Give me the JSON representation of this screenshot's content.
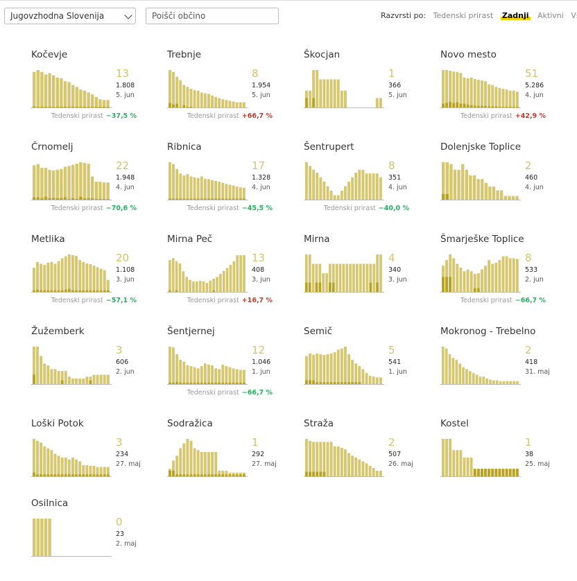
{
  "region_select": {
    "value": "Jugovzhodna Slovenija"
  },
  "search": {
    "placeholder": "Poišči občino"
  },
  "sort": {
    "label": "Razvrsti po:",
    "options": [
      "Tedenski prirast",
      "Zadnji",
      "Aktivni",
      "Vsi"
    ],
    "active": "Zadnji"
  },
  "growth_label": "Tedenski prirast",
  "colors": {
    "bar": "#d6c66e",
    "bar_dark": "#b8a21f",
    "accent": "#f1d100",
    "positive": "#c0392b",
    "negative": "#27ae60"
  },
  "chart_data": [
    {
      "type": "bar",
      "title": "Kočevje",
      "latest": "13",
      "cumulative": "1.808",
      "date": "5. jun",
      "growth": "−37,5 %",
      "growth_sign": "neg",
      "values": [
        95,
        100,
        95,
        88,
        92,
        86,
        80,
        78,
        70,
        68,
        60,
        55,
        48,
        45,
        40,
        35,
        28,
        22,
        20,
        20
      ],
      "highlight": [
        3,
        2,
        2,
        2,
        2,
        2,
        2,
        2,
        2,
        2,
        2,
        2,
        2,
        2,
        2,
        2,
        2,
        2,
        2,
        2
      ]
    },
    {
      "type": "bar",
      "title": "Trebnje",
      "latest": "8",
      "cumulative": "1.954",
      "date": "5. jun",
      "growth": "+66,7 %",
      "growth_sign": "pos",
      "values": [
        100,
        95,
        82,
        72,
        60,
        55,
        50,
        46,
        45,
        40,
        38,
        36,
        32,
        28,
        25,
        22,
        20,
        18,
        16,
        14,
        14,
        14
      ],
      "highlight": [
        12,
        8,
        10,
        0,
        6,
        2,
        2,
        0,
        0,
        0,
        0,
        0,
        0,
        0,
        0,
        0,
        0,
        0,
        0,
        0,
        0,
        0
      ]
    },
    {
      "type": "bar",
      "title": "Škocjan",
      "latest": "1",
      "cumulative": "366",
      "date": "5. jun",
      "growth": "",
      "growth_sign": "",
      "values": [
        45,
        45,
        100,
        100,
        75,
        75,
        75,
        75,
        75,
        75,
        45,
        45,
        0,
        0,
        0,
        0,
        0,
        0,
        0,
        0,
        25,
        25
      ],
      "highlight": [
        25,
        0,
        25,
        0,
        0,
        0,
        0,
        0,
        0,
        0,
        0,
        0,
        0,
        0,
        0,
        0,
        0,
        0,
        0,
        0,
        0,
        0
      ]
    },
    {
      "type": "bar",
      "title": "Novo mesto",
      "latest": "51",
      "cumulative": "5.286",
      "date": "4. jun",
      "growth": "+42,9 %",
      "growth_sign": "pos",
      "values": [
        100,
        100,
        98,
        96,
        95,
        92,
        80,
        78,
        80,
        76,
        74,
        72,
        70,
        62,
        60,
        55,
        52,
        50,
        48,
        45,
        45,
        42
      ],
      "highlight": [
        10,
        12,
        15,
        12,
        14,
        10,
        10,
        8,
        6,
        5,
        4,
        4,
        4,
        3,
        3,
        3,
        2,
        2,
        2,
        2,
        2,
        2
      ]
    },
    {
      "type": "bar",
      "title": "Črnomelj",
      "latest": "22",
      "cumulative": "1.948",
      "date": "4. jun",
      "growth": "−70,6 %",
      "growth_sign": "neg",
      "values": [
        92,
        95,
        85,
        85,
        80,
        78,
        80,
        82,
        88,
        90,
        93,
        96,
        100,
        98,
        96,
        62,
        48,
        48,
        46,
        46
      ],
      "highlight": [
        6,
        6,
        4,
        8,
        4,
        5,
        4,
        4,
        6,
        2,
        4,
        2,
        8,
        4,
        4,
        4,
        2,
        2,
        2,
        2
      ]
    },
    {
      "type": "bar",
      "title": "Ribnica",
      "latest": "17",
      "cumulative": "1.328",
      "date": "4. jun",
      "growth": "−45,5 %",
      "growth_sign": "neg",
      "values": [
        100,
        95,
        82,
        70,
        65,
        68,
        62,
        60,
        58,
        62,
        56,
        55,
        52,
        50,
        48,
        45,
        42,
        40,
        38,
        35,
        33,
        32
      ],
      "highlight": [
        3,
        3,
        3,
        3,
        3,
        3,
        3,
        3,
        3,
        3,
        3,
        3,
        3,
        3,
        3,
        3,
        3,
        3,
        3,
        3,
        3,
        3
      ]
    },
    {
      "type": "bar",
      "title": "Šentrupert",
      "latest": "8",
      "cumulative": "351",
      "date": "4. jun",
      "growth": "−40,0 %",
      "growth_sign": "neg",
      "values": [
        100,
        90,
        80,
        72,
        60,
        48,
        36,
        24,
        12,
        12,
        24,
        36,
        48,
        60,
        72,
        80,
        80,
        70,
        70,
        70,
        70,
        60
      ],
      "highlight": [
        0,
        0,
        0,
        0,
        0,
        0,
        0,
        0,
        0,
        0,
        0,
        0,
        0,
        0,
        0,
        0,
        0,
        0,
        0,
        0,
        0,
        0
      ]
    },
    {
      "type": "bar",
      "title": "Dolenjske Toplice",
      "latest": "2",
      "cumulative": "460",
      "date": "4. jun",
      "growth": "",
      "growth_sign": "",
      "values": [
        100,
        100,
        95,
        80,
        80,
        95,
        80,
        65,
        65,
        55,
        55,
        45,
        35,
        35,
        25,
        25,
        10,
        10,
        10,
        10
      ],
      "highlight": [
        15,
        15,
        0,
        0,
        0,
        0,
        0,
        0,
        0,
        0,
        0,
        0,
        0,
        0,
        0,
        0,
        0,
        0,
        0,
        0
      ]
    },
    {
      "type": "bar",
      "title": "Metlika",
      "latest": "20",
      "cumulative": "1.108",
      "date": "3. jun",
      "growth": "−57,1 %",
      "growth_sign": "neg",
      "values": [
        65,
        80,
        75,
        72,
        78,
        80,
        75,
        82,
        90,
        95,
        100,
        98,
        96,
        85,
        80,
        76,
        74,
        70,
        66,
        62,
        58,
        32
      ],
      "highlight": [
        4,
        6,
        4,
        4,
        4,
        4,
        4,
        4,
        4,
        6,
        8,
        4,
        4,
        4,
        4,
        4,
        4,
        4,
        4,
        4,
        4,
        4
      ]
    },
    {
      "type": "bar",
      "title": "Mirna Peč",
      "latest": "13",
      "cumulative": "408",
      "date": "3. jun",
      "growth": "+16,7 %",
      "growth_sign": "pos",
      "values": [
        85,
        90,
        82,
        76,
        55,
        40,
        32,
        28,
        28,
        30,
        28,
        24,
        30,
        35,
        40,
        48,
        56,
        64,
        72,
        82,
        98,
        98,
        98
      ],
      "highlight": [
        4,
        0,
        4,
        0,
        0,
        0,
        0,
        0,
        0,
        0,
        0,
        0,
        0,
        4,
        0,
        0,
        0,
        0,
        0,
        0,
        0,
        0,
        0
      ]
    },
    {
      "type": "bar",
      "title": "Mirna",
      "latest": "4",
      "cumulative": "340",
      "date": "3. jun",
      "growth": "",
      "growth_sign": "",
      "values": [
        100,
        100,
        75,
        75,
        75,
        50,
        50,
        75,
        75,
        75,
        75,
        75,
        75,
        75,
        75,
        75,
        75,
        75,
        75,
        75,
        75,
        100,
        100
      ],
      "highlight": [
        25,
        25,
        0,
        25,
        25,
        0,
        0,
        25,
        25,
        0,
        0,
        0,
        0,
        0,
        0,
        0,
        0,
        0,
        0,
        25,
        0,
        25,
        0
      ]
    },
    {
      "type": "bar",
      "title": "Šmarješke Toplice",
      "latest": "8",
      "cumulative": "533",
      "date": "2. jun",
      "growth": "−66,7 %",
      "growth_sign": "neg",
      "values": [
        70,
        85,
        100,
        90,
        75,
        65,
        55,
        60,
        55,
        48,
        50,
        60,
        70,
        85,
        75,
        78,
        85,
        95,
        95,
        90,
        90,
        88
      ],
      "highlight": [
        40,
        40,
        40,
        0,
        0,
        0,
        0,
        0,
        0,
        10,
        10,
        0,
        0,
        0,
        0,
        0,
        0,
        0,
        0,
        0,
        0,
        0
      ]
    },
    {
      "type": "bar",
      "title": "Žužemberk",
      "latest": "3",
      "cumulative": "606",
      "date": "2. jun",
      "growth": "",
      "growth_sign": "",
      "values": [
        100,
        100,
        75,
        55,
        50,
        40,
        40,
        35,
        35,
        35,
        20,
        15,
        15,
        15,
        15,
        20,
        20,
        25,
        25,
        25,
        25,
        25
      ],
      "highlight": [
        25,
        0,
        0,
        0,
        0,
        0,
        0,
        0,
        10,
        0,
        0,
        0,
        0,
        0,
        0,
        0,
        10,
        0,
        0,
        0,
        0,
        0
      ]
    },
    {
      "type": "bar",
      "title": "Šentjernej",
      "latest": "12",
      "cumulative": "1.046",
      "date": "1. jun",
      "growth": "−66,7 %",
      "growth_sign": "neg",
      "values": [
        100,
        98,
        80,
        65,
        60,
        50,
        48,
        45,
        42,
        48,
        55,
        52,
        50,
        42,
        40,
        52,
        48,
        45,
        42,
        40,
        38,
        38
      ],
      "highlight": [
        4,
        4,
        6,
        4,
        4,
        4,
        4,
        4,
        4,
        4,
        4,
        4,
        4,
        4,
        4,
        4,
        4,
        4,
        4,
        4,
        4,
        4
      ]
    },
    {
      "type": "bar",
      "title": "Semič",
      "latest": "5",
      "cumulative": "541",
      "date": "1. jun",
      "growth": "",
      "growth_sign": "",
      "values": [
        75,
        82,
        78,
        82,
        80,
        78,
        80,
        82,
        85,
        92,
        95,
        100,
        80,
        65,
        55,
        48,
        40,
        30,
        22,
        20,
        18,
        18
      ],
      "highlight": [
        10,
        10,
        10,
        5,
        5,
        5,
        5,
        5,
        5,
        5,
        5,
        5,
        5,
        5,
        5,
        5,
        0,
        0,
        0,
        0,
        0,
        0
      ]
    },
    {
      "type": "bar",
      "title": "Mokronog - Trebelno",
      "latest": "2",
      "cumulative": "418",
      "date": "31. maj",
      "growth": "",
      "growth_sign": "",
      "values": [
        100,
        95,
        80,
        70,
        65,
        55,
        45,
        40,
        35,
        30,
        25,
        20,
        20,
        15,
        12,
        10,
        10,
        8,
        8,
        8,
        8,
        8,
        8
      ],
      "highlight": [
        0,
        0,
        0,
        0,
        0,
        0,
        0,
        0,
        0,
        0,
        0,
        0,
        0,
        0,
        0,
        0,
        0,
        0,
        0,
        0,
        0,
        0,
        0
      ]
    },
    {
      "type": "bar",
      "title": "Loški Potok",
      "latest": "3",
      "cumulative": "234",
      "date": "27. maj",
      "growth": "",
      "growth_sign": "",
      "values": [
        100,
        95,
        90,
        80,
        75,
        70,
        60,
        55,
        50,
        50,
        45,
        50,
        45,
        40,
        30,
        30,
        28,
        28,
        25,
        25,
        25,
        25
      ],
      "highlight": [
        10,
        5,
        5,
        5,
        5,
        5,
        5,
        5,
        5,
        5,
        5,
        5,
        5,
        5,
        5,
        5,
        5,
        5,
        5,
        5,
        5,
        5
      ]
    },
    {
      "type": "bar",
      "title": "Sodražica",
      "latest": "1",
      "cumulative": "292",
      "date": "27. maj",
      "growth": "",
      "growth_sign": "",
      "values": [
        20,
        42,
        55,
        75,
        88,
        100,
        95,
        75,
        70,
        65,
        65,
        65,
        65,
        65,
        15,
        15,
        15,
        10,
        10,
        10,
        10,
        10
      ],
      "highlight": [
        15,
        15,
        5,
        5,
        5,
        5,
        5,
        5,
        5,
        5,
        5,
        5,
        5,
        5,
        5,
        5,
        5,
        5,
        5,
        5,
        5,
        5
      ]
    },
    {
      "type": "bar",
      "title": "Straža",
      "latest": "2",
      "cumulative": "507",
      "date": "26. maj",
      "growth": "",
      "growth_sign": "",
      "values": [
        100,
        95,
        92,
        92,
        92,
        92,
        92,
        92,
        80,
        80,
        76,
        72,
        62,
        55,
        50,
        45,
        40,
        35,
        28,
        22,
        15,
        15
      ],
      "highlight": [
        12,
        12,
        12,
        12,
        12,
        12,
        0,
        0,
        0,
        0,
        0,
        0,
        0,
        0,
        0,
        0,
        0,
        0,
        0,
        0,
        0,
        0
      ]
    },
    {
      "type": "bar",
      "title": "Kostel",
      "latest": "1",
      "cumulative": "38",
      "date": "25. maj",
      "growth": "",
      "growth_sign": "",
      "values": [
        100,
        100,
        100,
        70,
        70,
        70,
        50,
        50,
        50,
        20,
        20,
        20,
        20,
        20,
        20,
        20,
        20,
        20,
        20,
        20,
        20,
        20
      ],
      "highlight": [
        0,
        0,
        0,
        0,
        0,
        0,
        0,
        0,
        0,
        20,
        20,
        20,
        20,
        20,
        20,
        20,
        20,
        20,
        20,
        20,
        20,
        20
      ]
    },
    {
      "type": "bar",
      "title": "Osilnica",
      "latest": "0",
      "cumulative": "23",
      "date": "2. maj",
      "growth": "",
      "growth_sign": "",
      "values": [
        100,
        100,
        100,
        100,
        100,
        0,
        0,
        0,
        0,
        0,
        0,
        0,
        0,
        0,
        0,
        0,
        0,
        0,
        0,
        0
      ],
      "highlight": [
        0,
        0,
        0,
        0,
        0,
        0,
        0,
        0,
        0,
        0,
        0,
        0,
        0,
        0,
        0,
        0,
        0,
        0,
        0,
        0
      ]
    }
  ]
}
